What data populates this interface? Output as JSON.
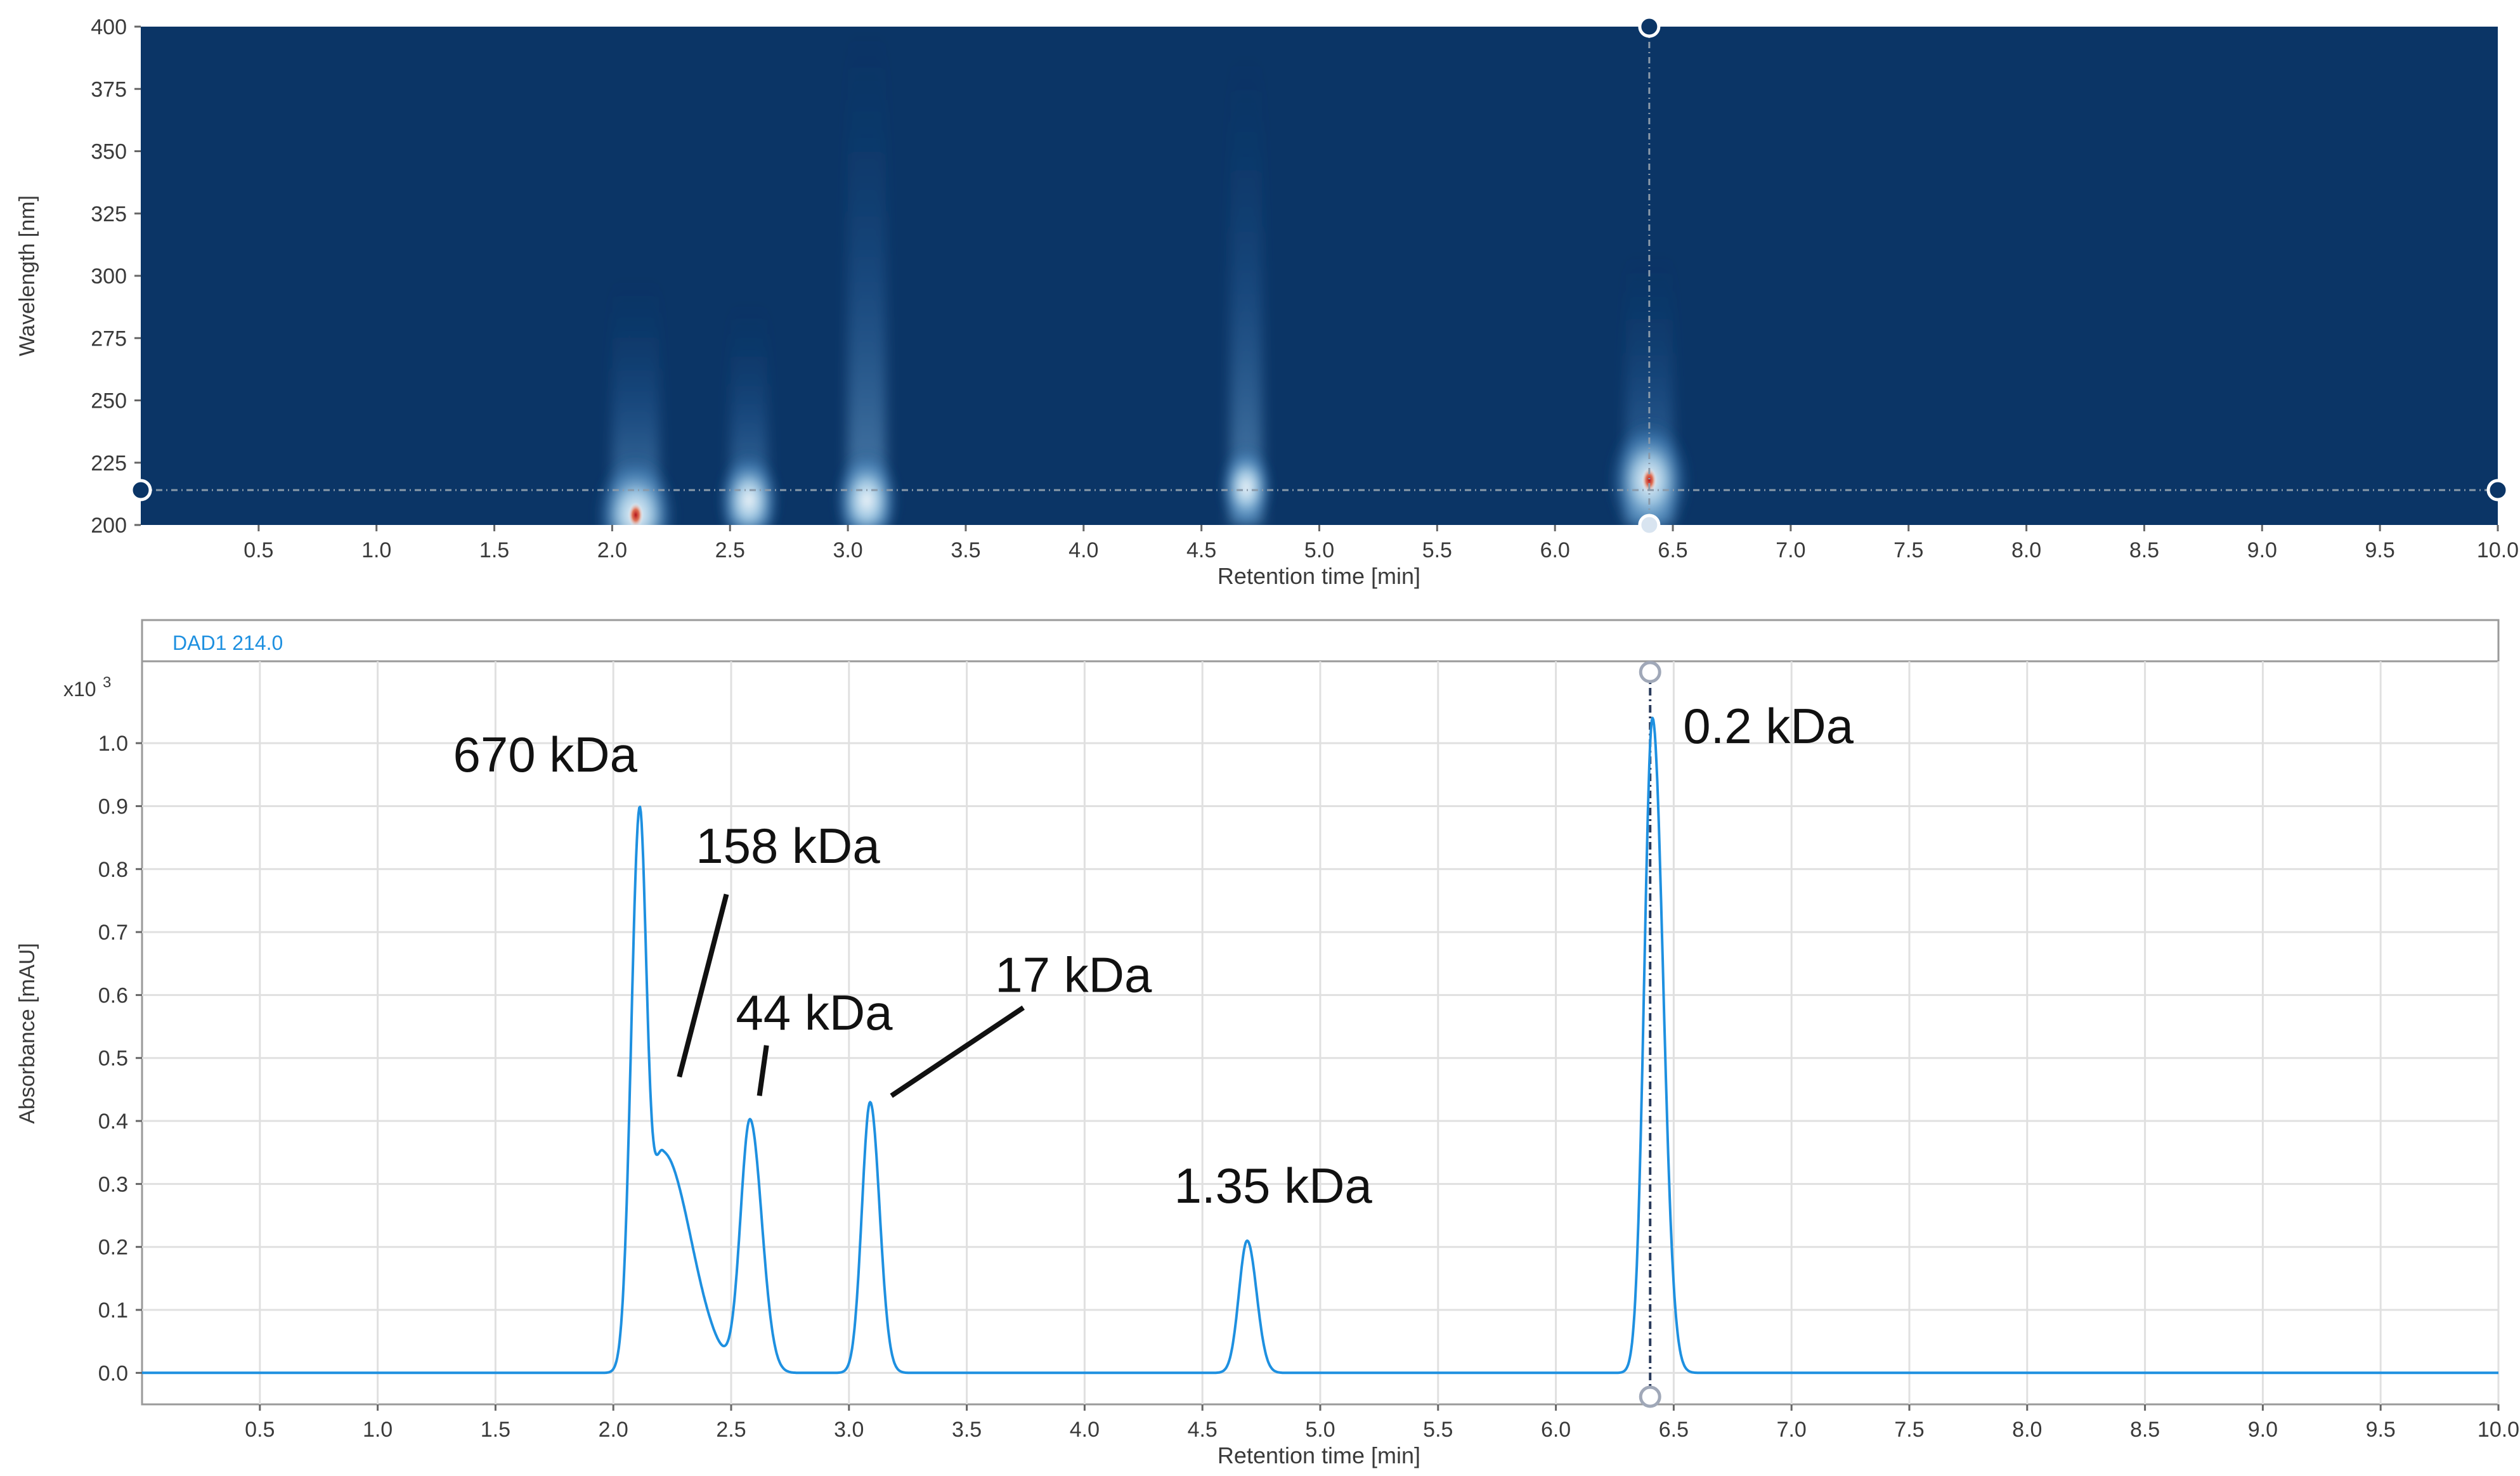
{
  "chart_data": [
    {
      "type": "heatmap",
      "title": "",
      "xlabel": "Retention time [min]",
      "ylabel": "Wavelength [nm]",
      "xlim": [
        0,
        10.0
      ],
      "ylim": [
        200,
        400
      ],
      "xticks": [
        "0.5",
        "1.0",
        "1.5",
        "2.0",
        "2.5",
        "3.0",
        "3.5",
        "4.0",
        "4.5",
        "5.0",
        "5.5",
        "6.0",
        "6.5",
        "7.0",
        "7.5",
        "8.0",
        "8.5",
        "9.0",
        "9.5",
        "10.0"
      ],
      "yticks": [
        "200",
        "225",
        "250",
        "275",
        "300",
        "325",
        "350",
        "375",
        "400"
      ],
      "background_color": "#0b3566",
      "cursor": {
        "time": 6.4,
        "wavelength": 214
      },
      "intensity_spots": [
        {
          "time": 2.1,
          "wavelength_low": 200,
          "wavelength_high": 300,
          "peak_wavelength": 204,
          "intensity": 1.0
        },
        {
          "time": 2.58,
          "wavelength_low": 200,
          "wavelength_high": 290,
          "peak_wavelength": 210,
          "intensity": 0.6
        },
        {
          "time": 3.08,
          "wavelength_low": 200,
          "wavelength_high": 400,
          "peak_wavelength": 210,
          "intensity": 0.65
        },
        {
          "time": 4.69,
          "wavelength_low": 200,
          "wavelength_high": 390,
          "peak_wavelength": 215,
          "intensity": 0.4
        },
        {
          "time": 6.4,
          "wavelength_low": 200,
          "wavelength_high": 310,
          "peak_wavelength": 218,
          "intensity": 1.0
        }
      ]
    },
    {
      "type": "line",
      "legend_label": "DAD1 214.0",
      "xlabel": "Retention time [min]",
      "ylabel": "Absorbance [mAU]",
      "y_multiplier": "x10",
      "y_multiplier_exp": "3",
      "xlim": [
        0,
        10.0
      ],
      "ylim": [
        -0.05,
        1.13
      ],
      "xticks": [
        "0.5",
        "1.0",
        "1.5",
        "2.0",
        "2.5",
        "3.0",
        "3.5",
        "4.0",
        "4.5",
        "5.0",
        "5.5",
        "6.0",
        "6.5",
        "7.0",
        "7.5",
        "8.0",
        "8.5",
        "9.0",
        "9.5",
        "10.0"
      ],
      "yticks": [
        "0.0",
        "0.1",
        "0.2",
        "0.3",
        "0.4",
        "0.5",
        "0.6",
        "0.7",
        "0.8",
        "0.9",
        "1.0"
      ],
      "line_color": "#1e90e0",
      "cursor_time": 6.4,
      "peaks": [
        {
          "time": 2.11,
          "height": 0.85,
          "width_left": 0.035,
          "width_right": 0.03
        },
        {
          "time": 2.21,
          "height": 0.35,
          "width_left": 0.05,
          "width_right": 0.12
        },
        {
          "time": 2.58,
          "height": 0.4,
          "width_left": 0.04,
          "width_right": 0.05
        },
        {
          "time": 3.09,
          "height": 0.43,
          "width_left": 0.035,
          "width_right": 0.04
        },
        {
          "time": 4.69,
          "height": 0.21,
          "width_left": 0.035,
          "width_right": 0.04
        },
        {
          "time": 6.41,
          "height": 1.04,
          "width_left": 0.035,
          "width_right": 0.045
        }
      ],
      "annotations": [
        {
          "text": "670 kDa",
          "time": 1.32,
          "value": 0.955,
          "leader": null
        },
        {
          "text": "158 kDa",
          "time": 2.35,
          "value": 0.81,
          "leader": [
            2.48,
            0.76,
            2.28,
            0.47
          ]
        },
        {
          "text": "44 kDa",
          "time": 2.52,
          "value": 0.545,
          "leader": [
            2.65,
            0.52,
            2.62,
            0.44
          ]
        },
        {
          "text": "17 kDa",
          "time": 3.62,
          "value": 0.605,
          "leader": [
            3.74,
            0.58,
            3.18,
            0.44
          ]
        },
        {
          "text": "1.35 kDa",
          "time": 4.38,
          "value": 0.27,
          "leader": null
        },
        {
          "text": "0.2 kDa",
          "time": 6.54,
          "value": 1.0,
          "leader": null
        }
      ]
    }
  ]
}
